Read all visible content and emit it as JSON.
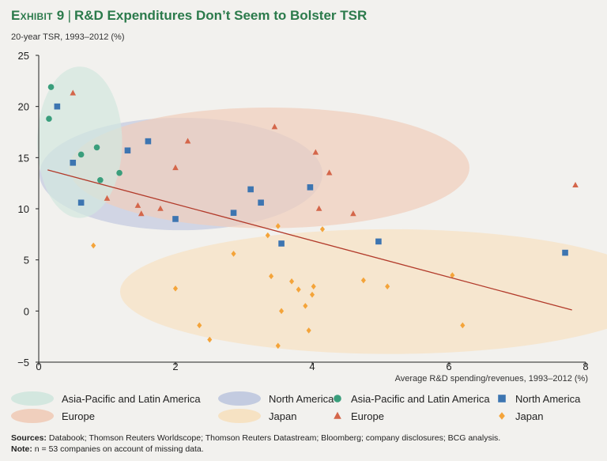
{
  "header": {
    "exhibit": "Exhibit 9",
    "separator": "|",
    "title": "R&D Expenditures Don’t Seem to Bolster TSR"
  },
  "colors": {
    "apla": "#3a9e7c",
    "north_america": "#3d75b1",
    "europe": "#d4664a",
    "japan": "#f4a43a",
    "trend": "#b23a2a",
    "ell_apla": "#d3e7df",
    "ell_na": "#c3cbe0",
    "ell_eu": "#f0cfbd",
    "ell_jp": "#f6e2c3"
  },
  "chart_data": {
    "type": "scatter",
    "title": "R&D Expenditures Don’t Seem to Bolster TSR",
    "ylabel": "20-year TSR, 1993–2012 (%)",
    "xlabel": "Average R&D spending/revenues, 1993–2012 (%)",
    "xlim": [
      0,
      8
    ],
    "ylim": [
      -5,
      25
    ],
    "xticks": [
      0,
      2,
      4,
      6,
      8
    ],
    "yticks": [
      -5,
      0,
      5,
      10,
      15,
      20,
      25
    ],
    "grid": false,
    "legend_position": "bottom",
    "series": [
      {
        "name": "Asia-Pacific and Latin America",
        "marker": "circle",
        "points": [
          [
            0.18,
            21.9
          ],
          [
            0.15,
            18.8
          ],
          [
            0.62,
            15.3
          ],
          [
            0.85,
            16.0
          ],
          [
            0.9,
            12.8
          ],
          [
            1.18,
            13.5
          ]
        ]
      },
      {
        "name": "North America",
        "marker": "square",
        "points": [
          [
            0.27,
            20.0
          ],
          [
            0.5,
            14.5
          ],
          [
            0.62,
            10.6
          ],
          [
            1.3,
            15.7
          ],
          [
            1.6,
            16.6
          ],
          [
            2.0,
            9.0
          ],
          [
            2.85,
            9.6
          ],
          [
            3.1,
            11.9
          ],
          [
            3.25,
            10.6
          ],
          [
            3.55,
            6.6
          ],
          [
            3.97,
            12.1
          ],
          [
            4.97,
            6.8
          ],
          [
            7.7,
            5.7
          ]
        ]
      },
      {
        "name": "Europe",
        "marker": "triangle",
        "points": [
          [
            0.5,
            21.3
          ],
          [
            1.0,
            11.0
          ],
          [
            1.45,
            10.3
          ],
          [
            1.5,
            9.5
          ],
          [
            1.78,
            10.0
          ],
          [
            2.18,
            16.6
          ],
          [
            2.0,
            14.0
          ],
          [
            3.45,
            18.0
          ],
          [
            4.05,
            15.5
          ],
          [
            4.1,
            10.0
          ],
          [
            4.25,
            13.5
          ],
          [
            4.6,
            9.5
          ],
          [
            7.85,
            12.3
          ]
        ]
      },
      {
        "name": "Japan",
        "marker": "diamond",
        "points": [
          [
            0.8,
            6.4
          ],
          [
            2.0,
            2.2
          ],
          [
            2.35,
            -1.4
          ],
          [
            2.5,
            -2.8
          ],
          [
            2.85,
            5.6
          ],
          [
            3.35,
            7.4
          ],
          [
            3.5,
            8.3
          ],
          [
            3.4,
            3.4
          ],
          [
            3.7,
            2.9
          ],
          [
            3.8,
            2.1
          ],
          [
            3.9,
            0.5
          ],
          [
            3.55,
            0.0
          ],
          [
            3.95,
            -1.9
          ],
          [
            4.0,
            1.6
          ],
          [
            4.02,
            2.4
          ],
          [
            4.15,
            8.0
          ],
          [
            3.5,
            -3.4
          ],
          [
            4.75,
            3.0
          ],
          [
            5.1,
            2.4
          ],
          [
            6.05,
            3.5
          ],
          [
            6.2,
            -1.4
          ]
        ]
      }
    ],
    "regions": [
      {
        "name": "Asia-Pacific and Latin America",
        "center": [
          0.6,
          16.5
        ],
        "radius": [
          0.62,
          7.4
        ]
      },
      {
        "name": "North America",
        "center": [
          2.08,
          13.4
        ],
        "radius": [
          2.07,
          5.5
        ]
      },
      {
        "name": "Europe",
        "center": [
          3.37,
          14.0
        ],
        "radius": [
          2.93,
          5.9
        ]
      },
      {
        "name": "Japan",
        "center": [
          5.14,
          1.9
        ],
        "radius": [
          3.95,
          6.1
        ]
      }
    ],
    "trendline": {
      "x": [
        0.13,
        7.8
      ],
      "y": [
        13.8,
        0.1
      ]
    }
  },
  "legend": {
    "rows": [
      [
        {
          "label": "Asia-Pacific and Latin America",
          "kind": "region",
          "color_key": "ell_apla",
          "name": "legend-region-apla"
        },
        {
          "label": "North America",
          "kind": "region",
          "color_key": "ell_na",
          "name": "legend-region-north-america"
        },
        {
          "label": "Asia-Pacific and Latin America",
          "kind": "marker",
          "marker": "circle",
          "color_key": "apla",
          "name": "legend-marker-apla"
        },
        {
          "label": "North America",
          "kind": "marker",
          "marker": "square",
          "color_key": "north_america",
          "name": "legend-marker-north-america"
        }
      ],
      [
        {
          "label": "Europe",
          "kind": "region",
          "color_key": "ell_eu",
          "name": "legend-region-europe"
        },
        {
          "label": "Japan",
          "kind": "region",
          "color_key": "ell_jp",
          "name": "legend-region-japan"
        },
        {
          "label": "Europe",
          "kind": "marker",
          "marker": "triangle",
          "color_key": "europe",
          "name": "legend-marker-europe"
        },
        {
          "label": "Japan",
          "kind": "marker",
          "marker": "diamond",
          "color_key": "japan",
          "name": "legend-marker-japan"
        }
      ]
    ]
  },
  "notes": {
    "sources_label": "Sources:",
    "sources_text": "Databook; Thomson Reuters Worldscope; Thomson Reuters Datastream; Bloomberg; company disclosures; BCG analysis.",
    "note_label": "Note:",
    "note_text": "n = 53 companies on account of missing data."
  }
}
